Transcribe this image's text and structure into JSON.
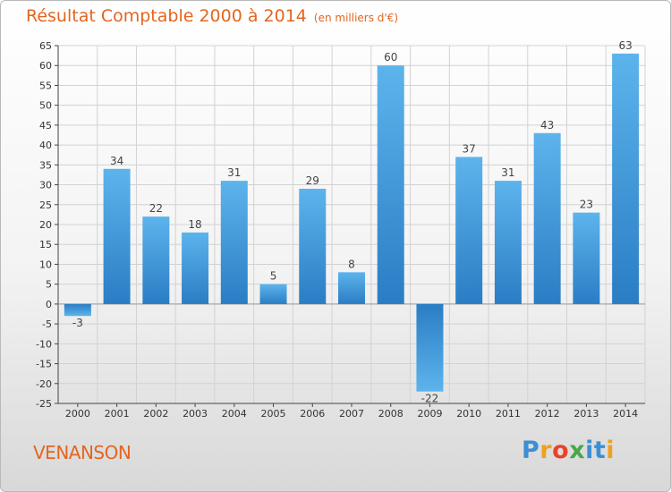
{
  "header": {
    "title": "Résultat Comptable 2000 à 2014",
    "subtitle": "(en milliers d'€)"
  },
  "footer": {
    "commune": "VENANSON",
    "brand_letters": [
      "P",
      "r",
      "o",
      "x",
      "i",
      "t",
      "i"
    ]
  },
  "colors": {
    "title": "#e4651f",
    "bar_top": "#5db4ec",
    "bar_bottom": "#2a7dc4",
    "grid": "#d2d2d2",
    "axis": "#444444"
  },
  "chart_data": {
    "type": "bar",
    "title": "Résultat Comptable 2000 à 2014",
    "subtitle": "(en milliers d'€)",
    "xlabel": "",
    "ylabel": "",
    "categories": [
      "2000",
      "2001",
      "2002",
      "2003",
      "2004",
      "2005",
      "2006",
      "2007",
      "2008",
      "2009",
      "2010",
      "2011",
      "2012",
      "2013",
      "2014"
    ],
    "values": [
      -3,
      34,
      22,
      18,
      31,
      5,
      29,
      8,
      60,
      -22,
      37,
      31,
      43,
      23,
      63
    ],
    "ylim": [
      -25,
      65
    ],
    "yticks": [
      -25,
      -20,
      -15,
      -10,
      -5,
      0,
      5,
      10,
      15,
      20,
      25,
      30,
      35,
      40,
      45,
      50,
      55,
      60,
      65
    ],
    "grid": true,
    "legend": "none"
  }
}
